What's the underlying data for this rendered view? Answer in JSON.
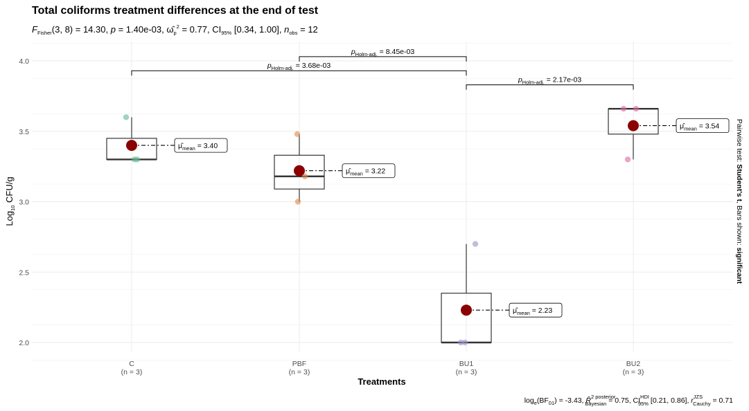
{
  "chart_data": {
    "type": "box",
    "title": "Total coliforms treatment differences at the end of test",
    "subtitle": {
      "f_stat": "(3, 8) = 14.30",
      "p_value": "1.40e-03",
      "omega_sq": "0.77",
      "ci": "[0.34, 1.00]",
      "n_obs": "12"
    },
    "xlabel": "Treatments",
    "ylabel": "Log10 CFU/g",
    "ylim": [
      1.85,
      4.12
    ],
    "yticks": [
      2.0,
      2.5,
      3.0,
      3.5,
      4.0
    ],
    "ytick_labels": [
      "2.0",
      "2.5",
      "3.0",
      "3.5",
      "4.0"
    ],
    "grid": true,
    "categories": [
      {
        "name": "C",
        "n_label": "(n = 3)",
        "color": "#5fb98f",
        "points": [
          3.6,
          3.3,
          3.3
        ],
        "box": {
          "q1": 3.3,
          "median": 3.3,
          "q3": 3.45,
          "whisker_low": 3.3,
          "whisker_high": 3.6
        },
        "mean": 3.4,
        "mean_label": "3.40"
      },
      {
        "name": "PBF",
        "n_label": "(n = 3)",
        "color": "#e0884a",
        "points": [
          3.48,
          3.18,
          3.0
        ],
        "box": {
          "q1": 3.09,
          "median": 3.18,
          "q3": 3.33,
          "whisker_low": 3.0,
          "whisker_high": 3.48
        },
        "mean": 3.22,
        "mean_label": "3.22"
      },
      {
        "name": "BU1",
        "n_label": "(n = 3)",
        "color": "#9a91c7",
        "points": [
          2.7,
          2.0,
          2.0
        ],
        "box": {
          "q1": 2.0,
          "median": 2.0,
          "q3": 2.35,
          "whisker_low": 2.0,
          "whisker_high": 2.7
        },
        "mean": 2.23,
        "mean_label": "2.23"
      },
      {
        "name": "BU2",
        "n_label": "(n = 3)",
        "color": "#e066a0",
        "points": [
          3.66,
          3.66,
          3.3
        ],
        "box": {
          "q1": 3.48,
          "median": 3.66,
          "q3": 3.66,
          "whisker_low": 3.3,
          "whisker_high": 3.66
        },
        "mean": 3.54,
        "mean_label": "3.54"
      }
    ],
    "mean_color": "#8b0000",
    "brackets": [
      {
        "from": 1,
        "to": 2,
        "level": 4.03,
        "p": "8.45e-03"
      },
      {
        "from": 0,
        "to": 2,
        "level": 3.93,
        "p": "3.68e-03"
      },
      {
        "from": 2,
        "to": 3,
        "level": 3.83,
        "p": "2.17e-03"
      }
    ],
    "right_label": {
      "prefix": "Pairwise test: ",
      "test": "Student's t",
      "middle": ", Bars shown: ",
      "shown": "significant"
    },
    "caption": {
      "bf": "= -3.43",
      "r2": "= 0.75",
      "ci": "[0.21, 0.86]",
      "r_cauchy": "= 0.71"
    }
  }
}
